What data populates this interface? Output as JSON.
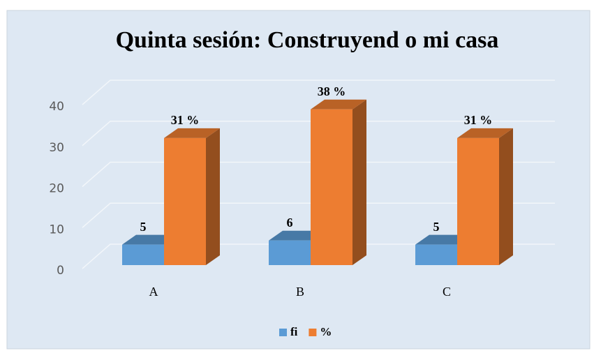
{
  "chart_data": {
    "type": "bar3d",
    "title": "Quinta sesión: Construyend o mi casa",
    "categories": [
      "A",
      "B",
      "C"
    ],
    "series": [
      {
        "name": "fi",
        "color": "#5b9bd5",
        "values": [
          5,
          6,
          5
        ]
      },
      {
        "name": "%",
        "color": "#ed7d31",
        "values": [
          31,
          38,
          31
        ],
        "value_labels": [
          "31 %",
          "38 %",
          "31 %"
        ]
      }
    ],
    "ylim": [
      0,
      40
    ],
    "yticks": [
      0,
      10,
      20,
      30,
      40
    ],
    "grid": true,
    "legend": "bottom"
  }
}
